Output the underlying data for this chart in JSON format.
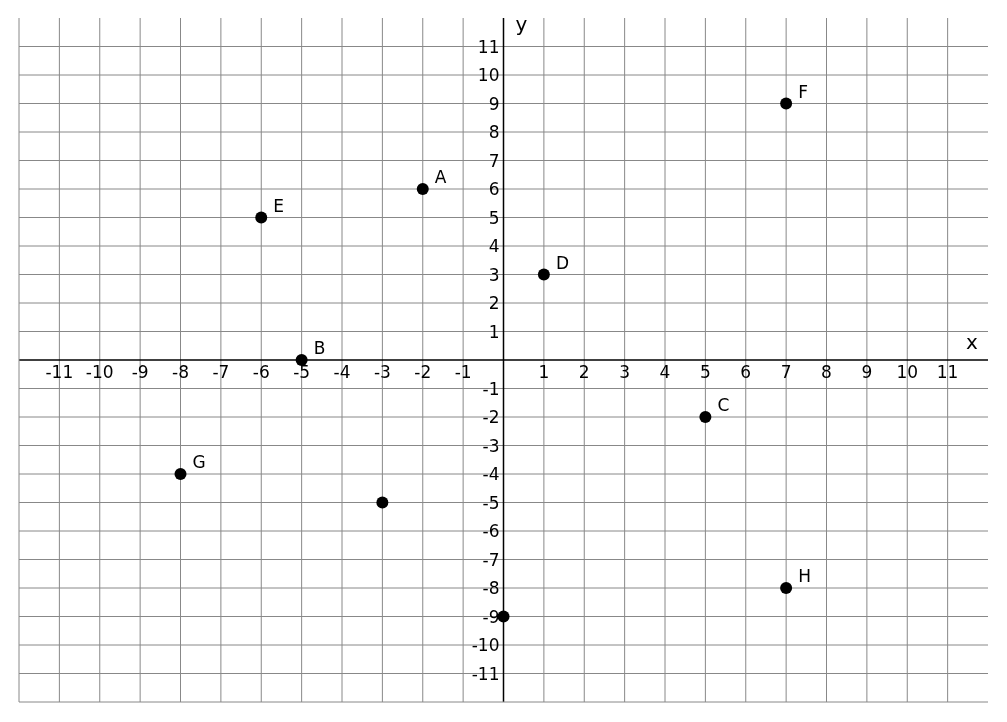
{
  "chart_data": {
    "type": "scatter",
    "xlabel": "x",
    "ylabel": "y",
    "x": [
      -2,
      -5,
      5,
      1,
      -6,
      7,
      -8,
      -3,
      7,
      0
    ],
    "values": [
      6,
      0,
      -2,
      3,
      5,
      9,
      -4,
      -5,
      -8,
      -9
    ],
    "color": "#000000",
    "marker": "circle",
    "grid": true,
    "xlim": [
      -12,
      12
    ],
    "ylim": [
      -12,
      12
    ],
    "xticks": [
      -11,
      -10,
      -9,
      -8,
      -7,
      -6,
      -5,
      -4,
      -3,
      -2,
      -1,
      1,
      2,
      3,
      4,
      5,
      6,
      7,
      8,
      9,
      10,
      11
    ],
    "yticks": [
      -11,
      -10,
      -9,
      -8,
      -7,
      -6,
      -5,
      -4,
      -3,
      -2,
      -1,
      1,
      2,
      3,
      4,
      5,
      6,
      7,
      8,
      9,
      10,
      11
    ],
    "annotations": [
      {
        "text": "A",
        "x": -2,
        "y": 6
      },
      {
        "text": "B",
        "x": -5,
        "y": 0
      },
      {
        "text": "C",
        "x": 5,
        "y": -2
      },
      {
        "text": "D",
        "x": 1,
        "y": 3
      },
      {
        "text": "E",
        "x": -6,
        "y": 5
      },
      {
        "text": "F",
        "x": 7,
        "y": 9
      },
      {
        "text": "G",
        "x": -8,
        "y": -4
      },
      {
        "text": "H",
        "x": 7,
        "y": -8
      }
    ]
  }
}
